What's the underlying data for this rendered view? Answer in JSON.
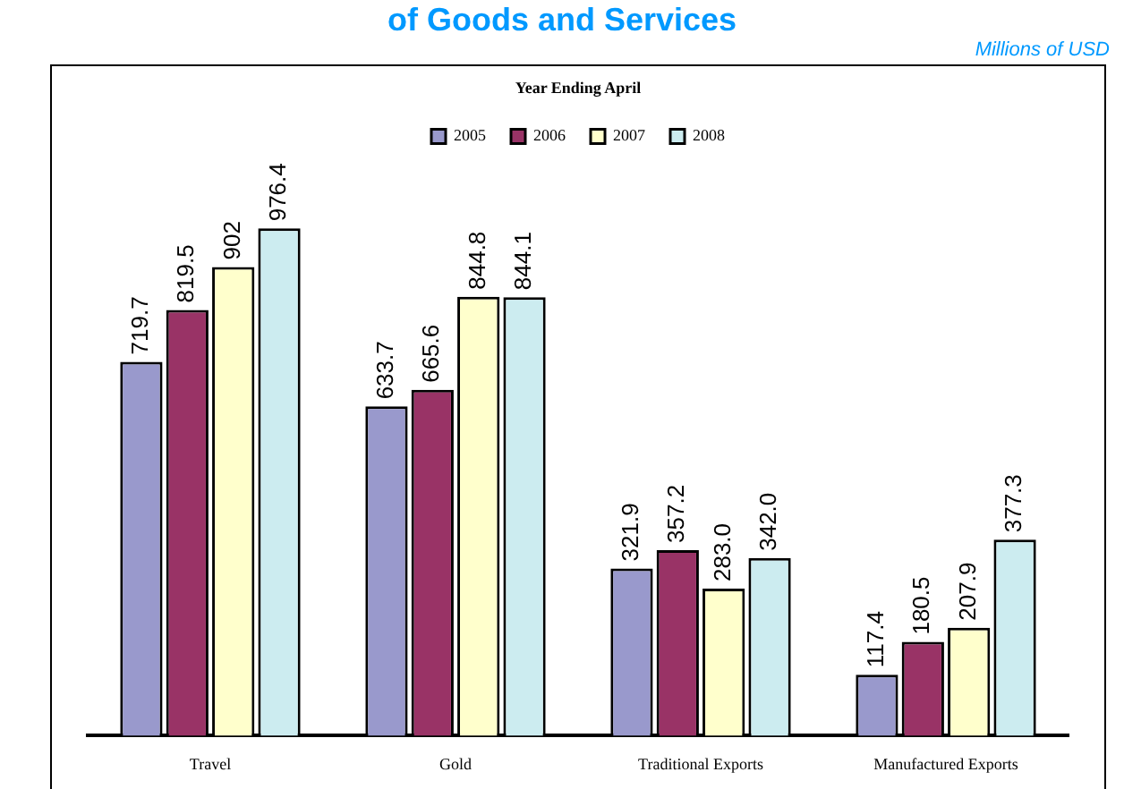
{
  "chart_data": {
    "type": "bar",
    "title": "of Goods and Services",
    "subtitle": "Millions of USD",
    "legend_title": "Year Ending April",
    "legend": "top",
    "categories": [
      "Travel",
      "Gold",
      "Traditional Exports",
      "Manufactured Exports"
    ],
    "series": [
      {
        "name": "2005",
        "color": "#9999cc",
        "values": [
          719.7,
          633.7,
          321.9,
          117.4
        ],
        "value_labels": [
          "719.7",
          "633.7",
          "321.9",
          "117.4"
        ]
      },
      {
        "name": "2006",
        "color": "#993366",
        "values": [
          819.5,
          665.6,
          357.2,
          180.5
        ],
        "value_labels": [
          "819.5",
          "665.6",
          "357.2",
          "180.5"
        ]
      },
      {
        "name": "2007",
        "color": "#ffffcc",
        "values": [
          902,
          844.8,
          283.0,
          207.9
        ],
        "value_labels": [
          "902",
          "844.8",
          "283.0",
          "207.9"
        ]
      },
      {
        "name": "2008",
        "color": "#ccecf0",
        "values": [
          976.4,
          844.1,
          342.0,
          377.3
        ],
        "value_labels": [
          "976.4",
          "844.1",
          "342.0",
          "377.3"
        ]
      }
    ]
  }
}
